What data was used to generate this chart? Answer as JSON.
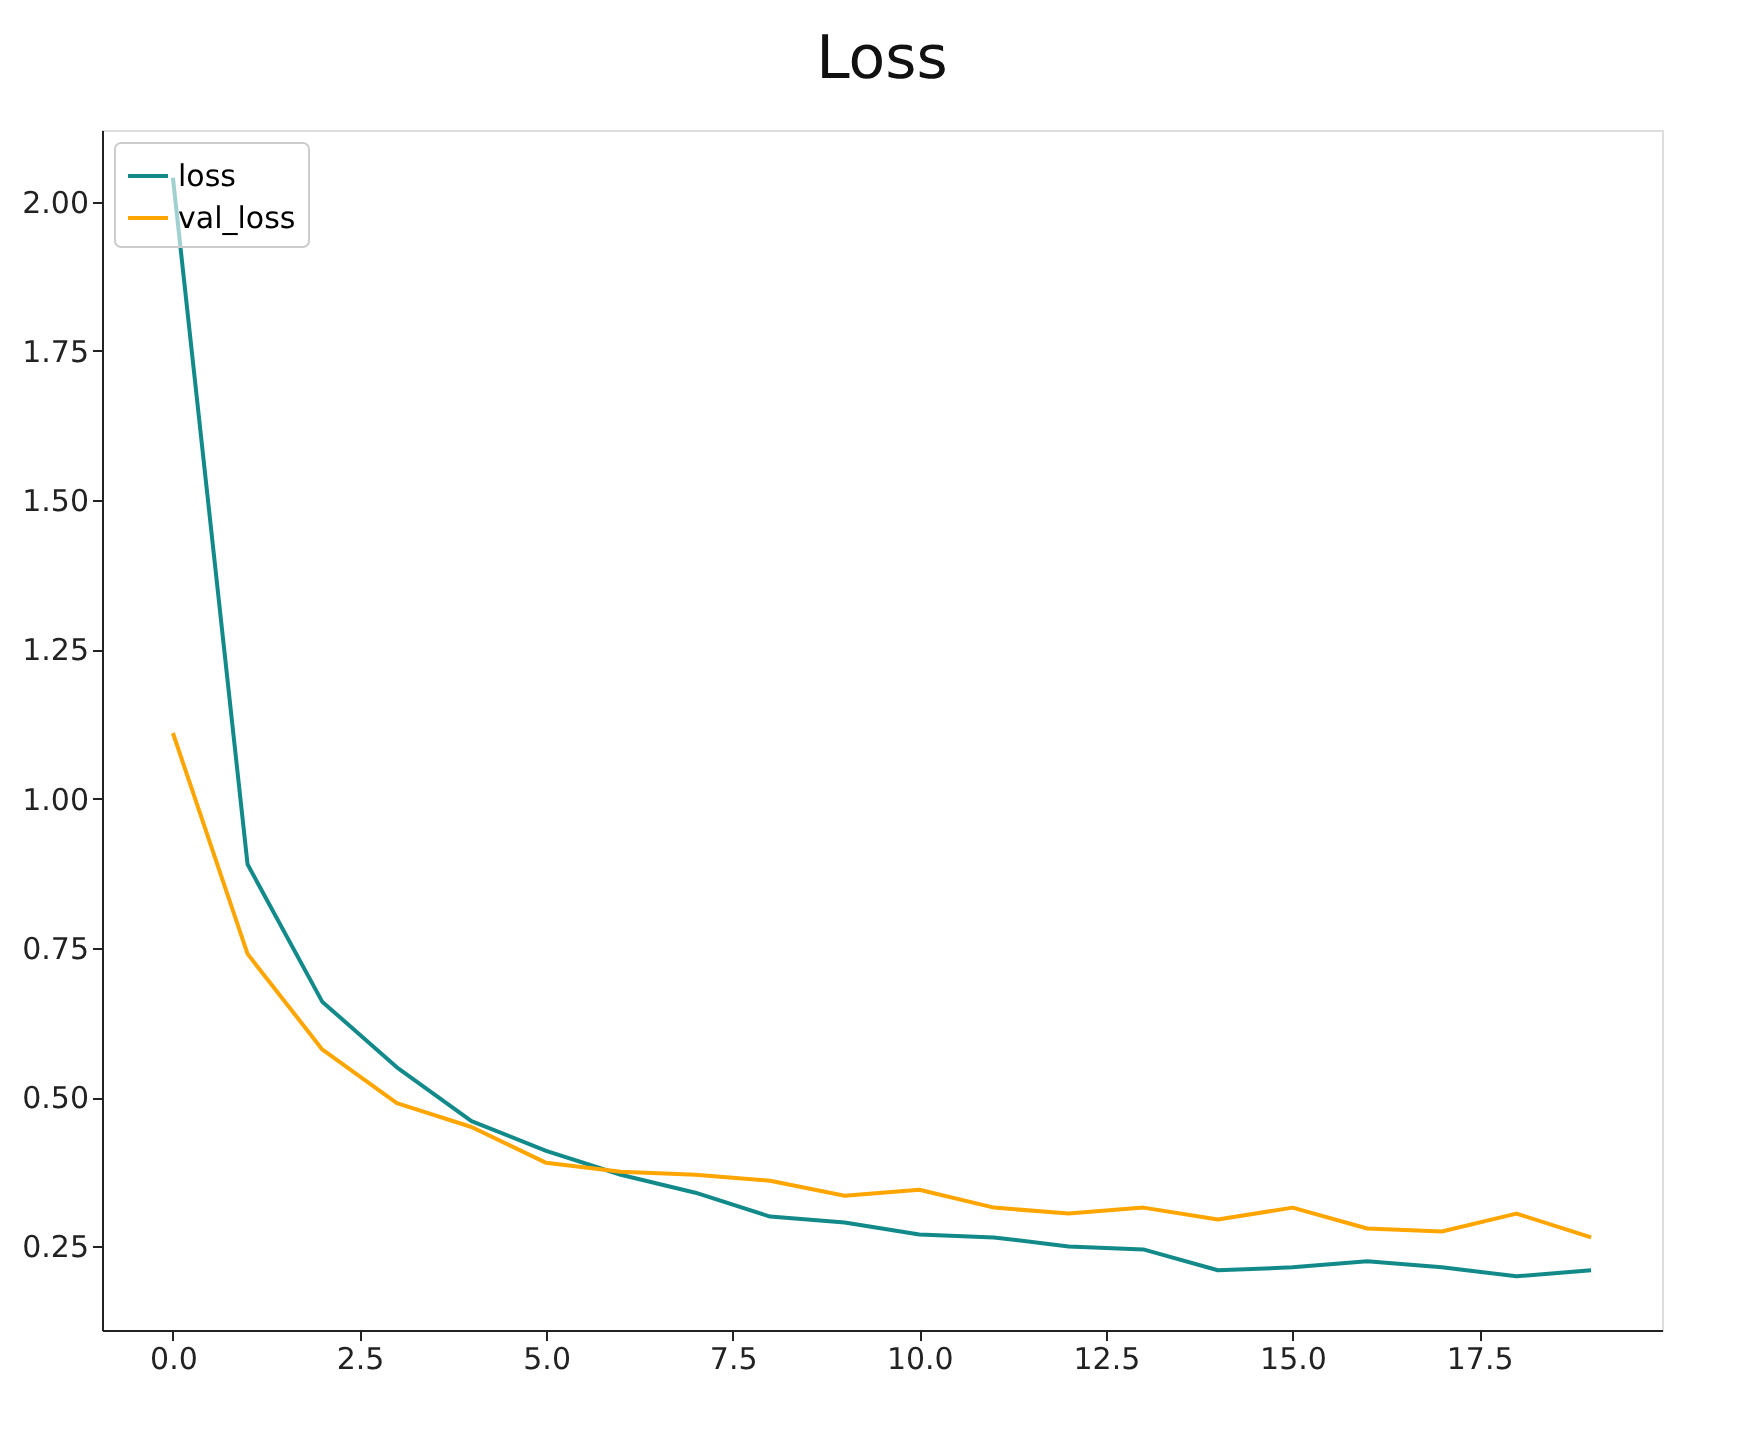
{
  "chart_data": {
    "type": "line",
    "title": "Loss",
    "x": [
      0,
      1,
      2,
      3,
      4,
      5,
      6,
      7,
      8,
      9,
      10,
      11,
      12,
      13,
      14,
      15,
      16,
      17,
      18,
      19
    ],
    "series": [
      {
        "name": "loss",
        "color": "#128a8a",
        "values": [
          2.04,
          0.89,
          0.66,
          0.55,
          0.46,
          0.41,
          0.37,
          0.34,
          0.3,
          0.29,
          0.27,
          0.265,
          0.25,
          0.245,
          0.21,
          0.215,
          0.225,
          0.215,
          0.2,
          0.21
        ]
      },
      {
        "name": "val_loss",
        "color": "#ffa500",
        "values": [
          1.11,
          0.74,
          0.58,
          0.49,
          0.45,
          0.39,
          0.375,
          0.37,
          0.36,
          0.335,
          0.345,
          0.315,
          0.305,
          0.315,
          0.295,
          0.315,
          0.28,
          0.275,
          0.305,
          0.265
        ]
      }
    ],
    "xlim": [
      -0.95,
      19.95
    ],
    "ylim": [
      0.11,
      2.12
    ],
    "xticks": [
      {
        "value": 0,
        "label": "0.0"
      },
      {
        "value": 2.5,
        "label": "2.5"
      },
      {
        "value": 5,
        "label": "5.0"
      },
      {
        "value": 7.5,
        "label": "7.5"
      },
      {
        "value": 10,
        "label": "10.0"
      },
      {
        "value": 12.5,
        "label": "12.5"
      },
      {
        "value": 15,
        "label": "15.0"
      },
      {
        "value": 17.5,
        "label": "17.5"
      }
    ],
    "yticks": [
      {
        "value": 0.25,
        "label": "0.25"
      },
      {
        "value": 0.5,
        "label": "0.50"
      },
      {
        "value": 0.75,
        "label": "0.75"
      },
      {
        "value": 1.0,
        "label": "1.00"
      },
      {
        "value": 1.25,
        "label": "1.25"
      },
      {
        "value": 1.5,
        "label": "1.50"
      },
      {
        "value": 1.75,
        "label": "1.75"
      },
      {
        "value": 2.0,
        "label": "2.00"
      }
    ],
    "grid": false,
    "legend": "top left",
    "marker": "none",
    "line_style": "solid"
  }
}
